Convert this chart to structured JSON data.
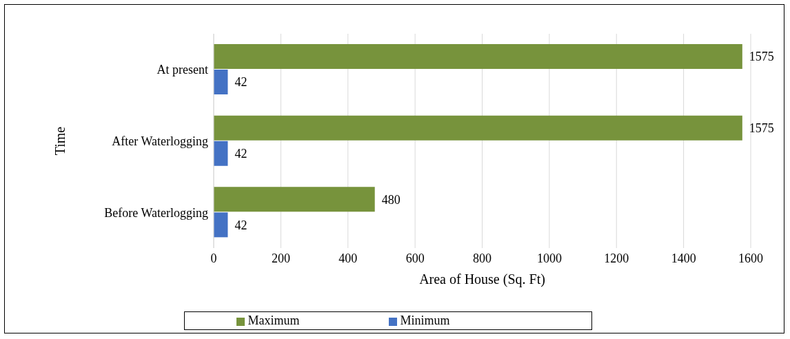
{
  "chart_data": {
    "type": "bar",
    "orientation": "horizontal",
    "xlabel": "Area of House (Sq. Ft)",
    "ylabel": "Time",
    "categories": [
      "At present",
      "After Waterlogging",
      "Before Waterlogging"
    ],
    "series": [
      {
        "name": "Maximum",
        "color": "#77933c",
        "values": [
          1575,
          1575,
          480
        ]
      },
      {
        "name": "Minimum",
        "color": "#4472c4",
        "values": [
          42,
          42,
          42
        ]
      }
    ],
    "xlim": [
      0,
      1600
    ],
    "xticks": [
      0,
      200,
      400,
      600,
      800,
      1000,
      1200,
      1400,
      1600
    ],
    "grid": "x",
    "legend": "bottom",
    "data_labels": true
  }
}
